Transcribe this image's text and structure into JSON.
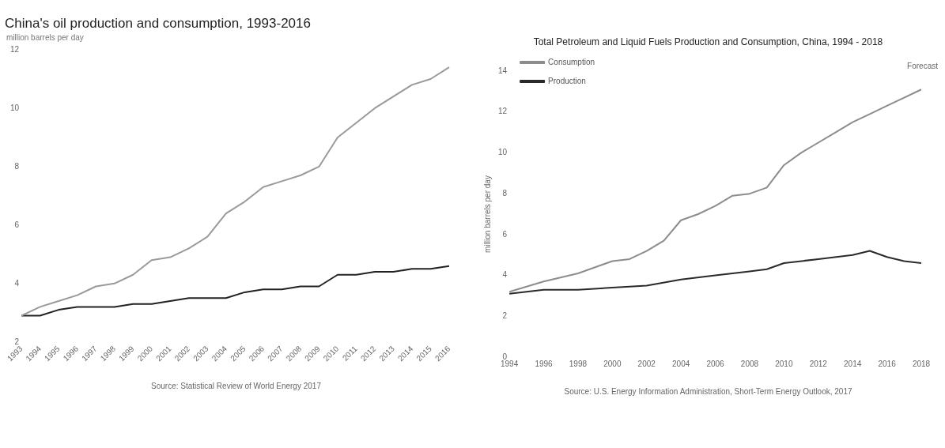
{
  "chart_data": [
    {
      "type": "line",
      "title": "China's oil production and consumption, 1993-2016",
      "subtitle": "million barrels per day",
      "categories": [
        "1993",
        "1994",
        "1995",
        "1996",
        "1997",
        "1998",
        "1999",
        "2000",
        "2001",
        "2002",
        "2003",
        "2004",
        "2005",
        "2006",
        "2007",
        "2008",
        "2009",
        "2010",
        "2011",
        "2012",
        "2013",
        "2014",
        "2015",
        "2016"
      ],
      "series": [
        {
          "color": "#9a9a9a",
          "values": [
            2.9,
            3.2,
            3.4,
            3.6,
            3.9,
            4.0,
            4.3,
            4.8,
            4.9,
            5.2,
            5.6,
            6.4,
            6.8,
            7.3,
            7.5,
            7.7,
            8.0,
            9.0,
            9.5,
            10.0,
            10.4,
            10.8,
            11.0,
            11.4
          ]
        },
        {
          "color": "#222222",
          "values": [
            2.9,
            2.9,
            3.1,
            3.2,
            3.2,
            3.2,
            3.3,
            3.3,
            3.4,
            3.5,
            3.5,
            3.5,
            3.7,
            3.8,
            3.8,
            3.9,
            3.9,
            4.3,
            4.3,
            4.4,
            4.4,
            4.5,
            4.5,
            4.6
          ]
        }
      ],
      "ylim": [
        2,
        12
      ],
      "yticks": [
        2,
        4,
        6,
        8,
        10,
        12
      ],
      "grid": false,
      "legend": false,
      "annotations": [
        "Source: Statistical Review of World Energy 2017"
      ]
    },
    {
      "type": "line",
      "title": "Total Petroleum and Liquid Fuels Production and Consumption, China, 1994 - 2018",
      "ylabel": "million barrels per day",
      "series": [
        {
          "name": "Consumption",
          "color": "#8c8c8c",
          "x": [
            1994,
            1996,
            1998,
            2000,
            2001,
            2002,
            2003,
            2004,
            2005,
            2006,
            2007,
            2008,
            2009,
            2010,
            2011,
            2012,
            2013,
            2014,
            2015,
            2016,
            2017,
            2018
          ],
          "values": [
            3.2,
            3.7,
            4.1,
            4.7,
            4.8,
            5.2,
            5.7,
            6.7,
            7.0,
            7.4,
            7.9,
            8.0,
            8.3,
            9.4,
            10.0,
            10.5,
            11.0,
            11.5,
            11.9,
            12.3,
            12.7,
            13.1
          ]
        },
        {
          "name": "Production",
          "color": "#2a2a2a",
          "x": [
            1994,
            1996,
            1998,
            2000,
            2002,
            2004,
            2006,
            2008,
            2009,
            2010,
            2012,
            2014,
            2015,
            2016,
            2017,
            2018
          ],
          "values": [
            3.1,
            3.3,
            3.3,
            3.4,
            3.5,
            3.8,
            4.0,
            4.2,
            4.3,
            4.6,
            4.8,
            5.0,
            5.2,
            4.9,
            4.7,
            4.6
          ]
        }
      ],
      "xlim": [
        1994,
        2018
      ],
      "xticks": [
        1994,
        1996,
        1998,
        2000,
        2002,
        2004,
        2006,
        2008,
        2010,
        2012,
        2014,
        2016,
        2018
      ],
      "ylim": [
        0,
        14
      ],
      "yticks": [
        0,
        2,
        4,
        6,
        8,
        10,
        12,
        14
      ],
      "grid": false,
      "legend": "top left",
      "annotations": [
        "Forecast",
        "Source: U.S. Energy Information Administration, Short-Term Energy Outlook, 2017"
      ]
    }
  ]
}
